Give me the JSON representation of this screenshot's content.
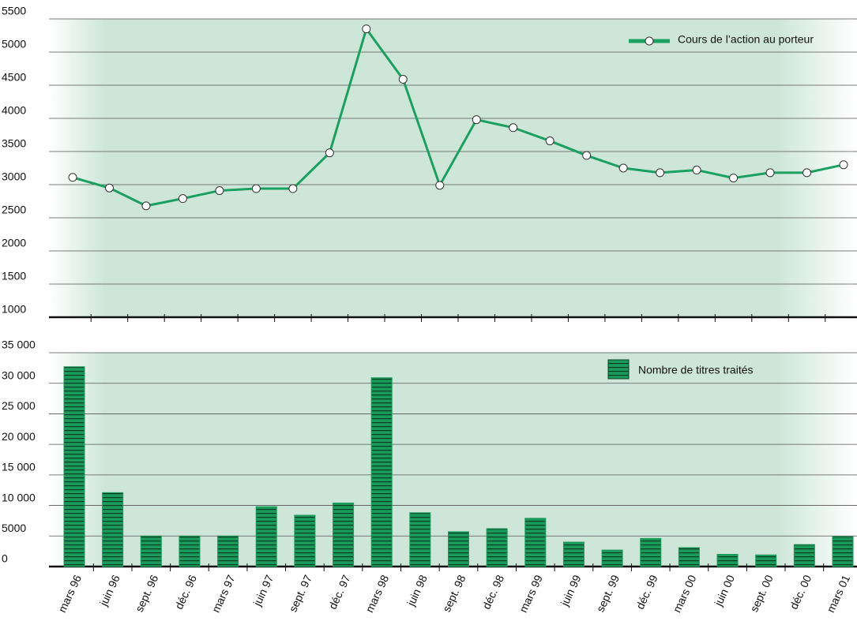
{
  "chart_data": [
    {
      "type": "line",
      "categories": [
        null,
        null,
        null,
        null,
        null,
        null,
        null,
        null,
        null,
        null,
        null,
        null,
        null,
        null,
        null,
        null,
        null,
        null,
        null,
        null,
        null,
        null
      ],
      "series": [
        {
          "name": "Cours de l’action au porteur",
          "color": "#1aa060",
          "values": [
            3110,
            2950,
            2680,
            2790,
            2910,
            2940,
            2940,
            3480,
            5350,
            4590,
            2990,
            3980,
            3860,
            3660,
            3440,
            3250,
            3180,
            3220,
            3100,
            3180,
            3180,
            3300
          ]
        }
      ],
      "ylim": [
        1000,
        5500
      ],
      "yticks": [
        1000,
        1500,
        2000,
        2500,
        3000,
        3500,
        4000,
        4500,
        5000,
        5500
      ],
      "grid": true,
      "legend": "top-right"
    },
    {
      "type": "bar",
      "categories": [
        "mars 96",
        "juin 96",
        "sept. 96",
        "déc. 96",
        "mars 97",
        "juin 97",
        "sept. 97",
        "déc. 97",
        "mars 98",
        "juin 98",
        "sept. 98",
        "déc. 98",
        "mars 99",
        "juin 99",
        "sept. 99",
        "déc. 99",
        "mars 00",
        "juin 00",
        "sept. 00",
        "déc. 00",
        "mars 01"
      ],
      "series": [
        {
          "name": "Nombre de titres traités",
          "color": "#1a9a5a",
          "values": [
            32700,
            12100,
            5000,
            5000,
            5000,
            9800,
            8400,
            10400,
            30900,
            8800,
            5700,
            6200,
            7900,
            4000,
            2700,
            4600,
            3100,
            2000,
            1900,
            3600,
            4900
          ]
        }
      ],
      "ylim": [
        0,
        35000
      ],
      "yticks": [
        0,
        5000,
        {
          "value": 10000,
          "label": "10 000"
        },
        {
          "value": 15000,
          "label": "15 000"
        },
        {
          "value": 20000,
          "label": "20 000"
        },
        {
          "value": 25000,
          "label": "25 000"
        },
        {
          "value": 30000,
          "label": "30 000"
        },
        {
          "value": 35000,
          "label": "35 000"
        }
      ],
      "grid": true,
      "legend": "top-right"
    }
  ]
}
